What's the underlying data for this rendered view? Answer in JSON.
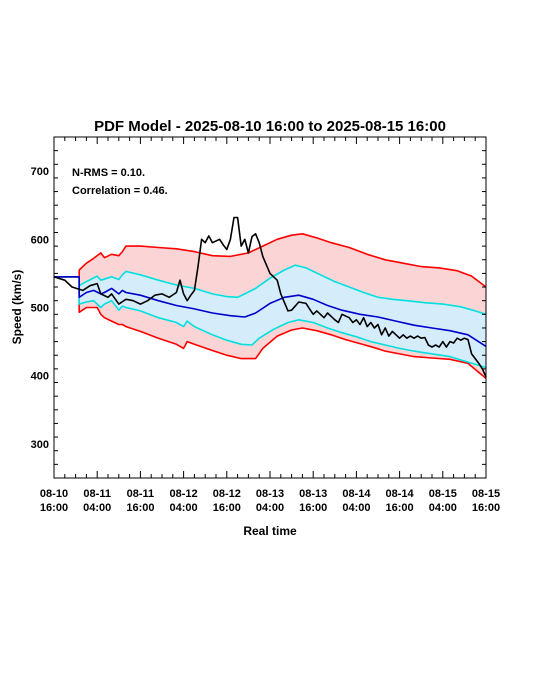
{
  "chart_data": {
    "type": "area",
    "title": "PDF Model - 2025-08-10 16:00 to 2025-08-15 16:00",
    "xlabel": "Real time",
    "ylabel": "Speed (km/s)",
    "ylim": [
      250,
      750
    ],
    "xlim": [
      0,
      120
    ],
    "y_ticks": [
      300,
      400,
      500,
      600,
      700
    ],
    "x_ticks": [
      {
        "hours": 0,
        "line1": "08-10",
        "line2": "16:00"
      },
      {
        "hours": 12,
        "line1": "08-11",
        "line2": "04:00"
      },
      {
        "hours": 24,
        "line1": "08-11",
        "line2": "16:00"
      },
      {
        "hours": 36,
        "line1": "08-12",
        "line2": "04:00"
      },
      {
        "hours": 48,
        "line1": "08-12",
        "line2": "16:00"
      },
      {
        "hours": 60,
        "line1": "08-13",
        "line2": "04:00"
      },
      {
        "hours": 72,
        "line1": "08-13",
        "line2": "16:00"
      },
      {
        "hours": 84,
        "line1": "08-14",
        "line2": "04:00"
      },
      {
        "hours": 96,
        "line1": "08-14",
        "line2": "16:00"
      },
      {
        "hours": 108,
        "line1": "08-15",
        "line2": "04:00"
      },
      {
        "hours": 120,
        "line1": "08-15",
        "line2": "16:00"
      }
    ],
    "annotations": [
      "N-RMS = 0.10.",
      "Correlation = 0.46."
    ],
    "grid": false,
    "colors": {
      "outer_band": "#ff0000",
      "outer_fill": "#fbd5d5",
      "inner_band": "#00e0e0",
      "inner_fill": "#d5ecfa",
      "median": "#0000cc",
      "observed": "#000000"
    },
    "series": [
      {
        "role": "outer_upper",
        "points": [
          [
            0,
            545
          ],
          [
            7,
            545
          ],
          [
            7,
            555
          ],
          [
            9,
            565
          ],
          [
            11,
            572
          ],
          [
            13,
            580
          ],
          [
            14,
            573
          ],
          [
            16,
            578
          ],
          [
            18,
            576
          ],
          [
            19,
            582
          ],
          [
            20,
            590
          ],
          [
            24,
            590
          ],
          [
            29,
            588
          ],
          [
            34,
            586
          ],
          [
            39,
            582
          ],
          [
            44,
            576
          ],
          [
            49,
            575
          ],
          [
            54,
            580
          ],
          [
            58,
            590
          ],
          [
            62,
            600
          ],
          [
            66,
            606
          ],
          [
            69,
            608
          ],
          [
            73,
            602
          ],
          [
            77,
            595
          ],
          [
            82,
            588
          ],
          [
            87,
            578
          ],
          [
            92,
            570
          ],
          [
            97,
            565
          ],
          [
            102,
            560
          ],
          [
            107,
            558
          ],
          [
            112,
            554
          ],
          [
            116,
            546
          ],
          [
            120,
            530
          ]
        ]
      },
      {
        "role": "inner_upper",
        "points": [
          [
            0,
            545
          ],
          [
            7,
            545
          ],
          [
            7,
            532
          ],
          [
            9,
            538
          ],
          [
            12,
            546
          ],
          [
            13,
            540
          ],
          [
            16,
            545
          ],
          [
            18,
            541
          ],
          [
            19,
            548
          ],
          [
            20,
            553
          ],
          [
            24,
            548
          ],
          [
            29,
            540
          ],
          [
            34,
            533
          ],
          [
            39,
            528
          ],
          [
            44,
            520
          ],
          [
            48,
            516
          ],
          [
            51,
            515
          ],
          [
            53,
            520
          ],
          [
            56,
            528
          ],
          [
            60,
            543
          ],
          [
            64,
            555
          ],
          [
            67,
            562
          ],
          [
            70,
            558
          ],
          [
            74,
            548
          ],
          [
            78,
            538
          ],
          [
            82,
            530
          ],
          [
            86,
            522
          ],
          [
            90,
            515
          ],
          [
            94,
            512
          ],
          [
            98,
            510
          ],
          [
            103,
            507
          ],
          [
            108,
            505
          ],
          [
            113,
            501
          ],
          [
            117,
            495
          ],
          [
            120,
            490
          ]
        ]
      },
      {
        "role": "median",
        "points": [
          [
            0,
            545
          ],
          [
            7,
            545
          ],
          [
            7,
            515
          ],
          [
            9,
            522
          ],
          [
            11,
            525
          ],
          [
            13,
            520
          ],
          [
            14,
            522
          ],
          [
            16,
            528
          ],
          [
            18,
            520
          ],
          [
            19,
            525
          ],
          [
            20,
            522
          ],
          [
            24,
            518
          ],
          [
            29,
            510
          ],
          [
            34,
            503
          ],
          [
            39,
            498
          ],
          [
            44,
            492
          ],
          [
            49,
            488
          ],
          [
            53,
            486
          ],
          [
            56,
            492
          ],
          [
            60,
            506
          ],
          [
            64,
            515
          ],
          [
            68,
            518
          ],
          [
            72,
            512
          ],
          [
            76,
            503
          ],
          [
            80,
            496
          ],
          [
            85,
            490
          ],
          [
            90,
            486
          ],
          [
            95,
            480
          ],
          [
            100,
            474
          ],
          [
            105,
            470
          ],
          [
            110,
            466
          ],
          [
            115,
            460
          ],
          [
            120,
            443
          ]
        ]
      },
      {
        "role": "inner_lower",
        "points": [
          [
            0,
            545
          ],
          [
            7,
            545
          ],
          [
            7,
            505
          ],
          [
            9,
            508
          ],
          [
            11,
            510
          ],
          [
            13,
            500
          ],
          [
            14,
            505
          ],
          [
            16,
            510
          ],
          [
            18,
            496
          ],
          [
            19,
            502
          ],
          [
            20,
            500
          ],
          [
            24,
            495
          ],
          [
            29,
            485
          ],
          [
            34,
            478
          ],
          [
            36,
            472
          ],
          [
            37,
            480
          ],
          [
            39,
            472
          ],
          [
            44,
            460
          ],
          [
            48,
            452
          ],
          [
            52,
            446
          ],
          [
            55,
            445
          ],
          [
            57,
            455
          ],
          [
            61,
            468
          ],
          [
            65,
            478
          ],
          [
            68,
            482
          ],
          [
            72,
            478
          ],
          [
            76,
            470
          ],
          [
            80,
            463
          ],
          [
            84,
            457
          ],
          [
            88,
            450
          ],
          [
            92,
            445
          ],
          [
            96,
            440
          ],
          [
            100,
            436
          ],
          [
            105,
            432
          ],
          [
            110,
            428
          ],
          [
            115,
            420
          ],
          [
            120,
            412
          ]
        ]
      },
      {
        "role": "outer_lower",
        "points": [
          [
            0,
            545
          ],
          [
            7,
            545
          ],
          [
            7,
            493
          ],
          [
            9,
            500
          ],
          [
            12,
            500
          ],
          [
            13,
            490
          ],
          [
            14,
            485
          ],
          [
            16,
            480
          ],
          [
            18,
            475
          ],
          [
            19,
            475
          ],
          [
            20,
            472
          ],
          [
            24,
            465
          ],
          [
            29,
            455
          ],
          [
            34,
            446
          ],
          [
            36,
            440
          ],
          [
            37,
            450
          ],
          [
            39,
            446
          ],
          [
            44,
            437
          ],
          [
            48,
            430
          ],
          [
            52,
            425
          ],
          [
            56,
            425
          ],
          [
            58,
            440
          ],
          [
            62,
            458
          ],
          [
            66,
            467
          ],
          [
            69,
            470
          ],
          [
            73,
            466
          ],
          [
            77,
            460
          ],
          [
            81,
            453
          ],
          [
            85,
            447
          ],
          [
            89,
            441
          ],
          [
            92,
            436
          ],
          [
            96,
            432
          ],
          [
            100,
            428
          ],
          [
            105,
            426
          ],
          [
            110,
            424
          ],
          [
            115,
            418
          ],
          [
            120,
            396
          ]
        ]
      },
      {
        "role": "observed",
        "points": [
          [
            0,
            545
          ],
          [
            3,
            540
          ],
          [
            5,
            530
          ],
          [
            8,
            525
          ],
          [
            10,
            532
          ],
          [
            12,
            535
          ],
          [
            13,
            520
          ],
          [
            15,
            515
          ],
          [
            16,
            520
          ],
          [
            18,
            505
          ],
          [
            20,
            512
          ],
          [
            22,
            510
          ],
          [
            24,
            505
          ],
          [
            26,
            510
          ],
          [
            28,
            518
          ],
          [
            30,
            520
          ],
          [
            32,
            515
          ],
          [
            34,
            522
          ],
          [
            35,
            540
          ],
          [
            36,
            520
          ],
          [
            37,
            510
          ],
          [
            38,
            518
          ],
          [
            39,
            525
          ],
          [
            40,
            560
          ],
          [
            41,
            600
          ],
          [
            42,
            595
          ],
          [
            43,
            605
          ],
          [
            44,
            595
          ],
          [
            46,
            600
          ],
          [
            47,
            592
          ],
          [
            48,
            585
          ],
          [
            49,
            600
          ],
          [
            50,
            632
          ],
          [
            51,
            632
          ],
          [
            52,
            590
          ],
          [
            53,
            600
          ],
          [
            54,
            580
          ],
          [
            55,
            604
          ],
          [
            56,
            608
          ],
          [
            57,
            595
          ],
          [
            58,
            575
          ],
          [
            60,
            550
          ],
          [
            62,
            540
          ],
          [
            63,
            520
          ],
          [
            65,
            495
          ],
          [
            66,
            496
          ],
          [
            68,
            508
          ],
          [
            70,
            506
          ],
          [
            71,
            498
          ],
          [
            72,
            490
          ],
          [
            73,
            495
          ],
          [
            75,
            485
          ],
          [
            76,
            492
          ],
          [
            78,
            482
          ],
          [
            79,
            478
          ],
          [
            80,
            490
          ],
          [
            82,
            485
          ],
          [
            83,
            478
          ],
          [
            84,
            482
          ],
          [
            85,
            475
          ],
          [
            86,
            485
          ],
          [
            87,
            472
          ],
          [
            88,
            478
          ],
          [
            89,
            470
          ],
          [
            90,
            475
          ],
          [
            91,
            460
          ],
          [
            92,
            470
          ],
          [
            93,
            458
          ],
          [
            94,
            465
          ],
          [
            95,
            460
          ],
          [
            96,
            455
          ],
          [
            97,
            460
          ],
          [
            98,
            455
          ],
          [
            99,
            458
          ],
          [
            100,
            455
          ],
          [
            101,
            458
          ],
          [
            102,
            455
          ],
          [
            103,
            456
          ],
          [
            104,
            445
          ],
          [
            105,
            442
          ],
          [
            106,
            445
          ],
          [
            107,
            442
          ],
          [
            108,
            450
          ],
          [
            109,
            442
          ],
          [
            110,
            450
          ],
          [
            111,
            448
          ],
          [
            112,
            455
          ],
          [
            113,
            452
          ],
          [
            114,
            455
          ],
          [
            115,
            453
          ],
          [
            116,
            432
          ],
          [
            118,
            418
          ],
          [
            119,
            410
          ],
          [
            120,
            398
          ]
        ]
      }
    ]
  }
}
